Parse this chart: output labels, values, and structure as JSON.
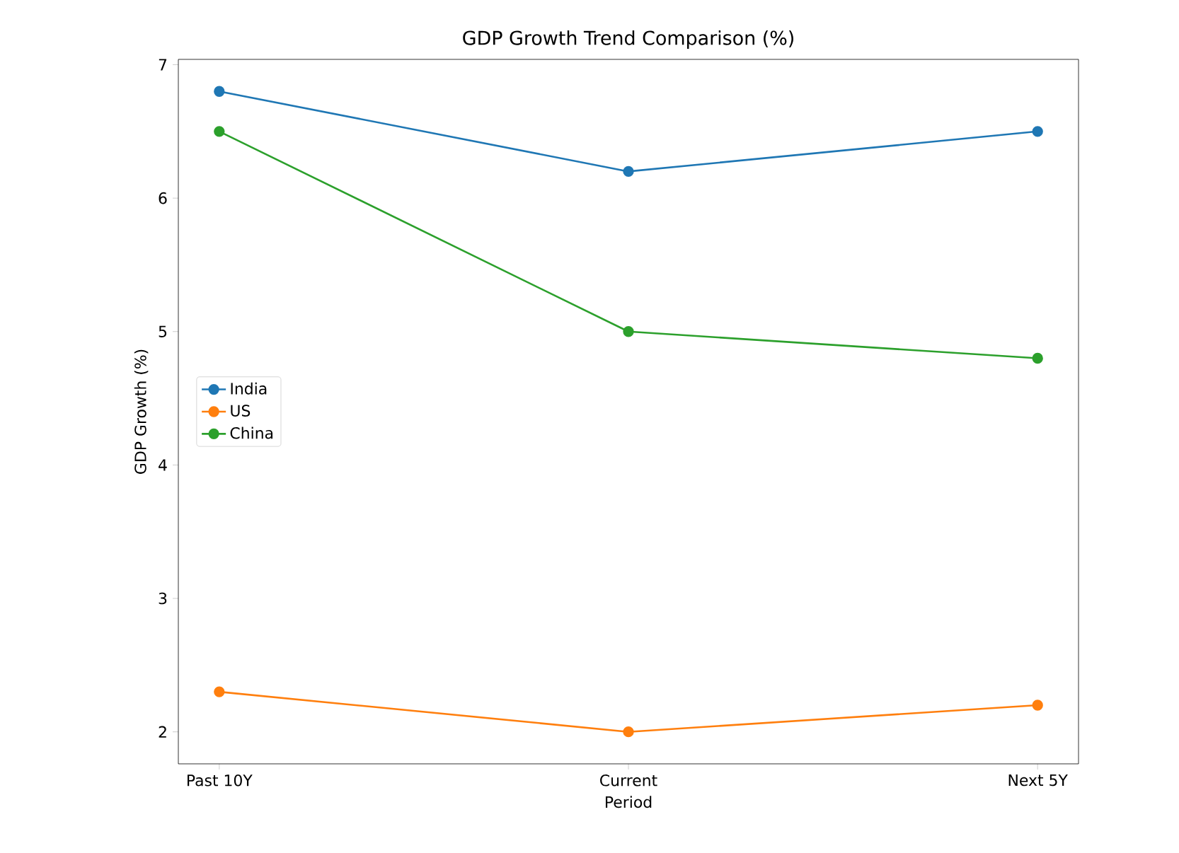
{
  "chart_data": {
    "type": "line",
    "title": "GDP Growth Trend Comparison (%)",
    "xlabel": "Period",
    "ylabel": "GDP Growth (%)",
    "categories": [
      "Past 10Y",
      "Current",
      "Next 5Y"
    ],
    "series": [
      {
        "name": "India",
        "color": "#1f77b4",
        "values": [
          6.8,
          6.2,
          6.5
        ]
      },
      {
        "name": "US",
        "color": "#ff7f0e",
        "values": [
          2.3,
          2.0,
          2.2
        ]
      },
      {
        "name": "China",
        "color": "#2ca02c",
        "values": [
          6.5,
          5.0,
          4.8
        ]
      }
    ],
    "ylim": [
      1.76,
      7.04
    ],
    "yticks": [
      2,
      3,
      4,
      5,
      6,
      7
    ],
    "legend": "left",
    "marker": "circle"
  }
}
